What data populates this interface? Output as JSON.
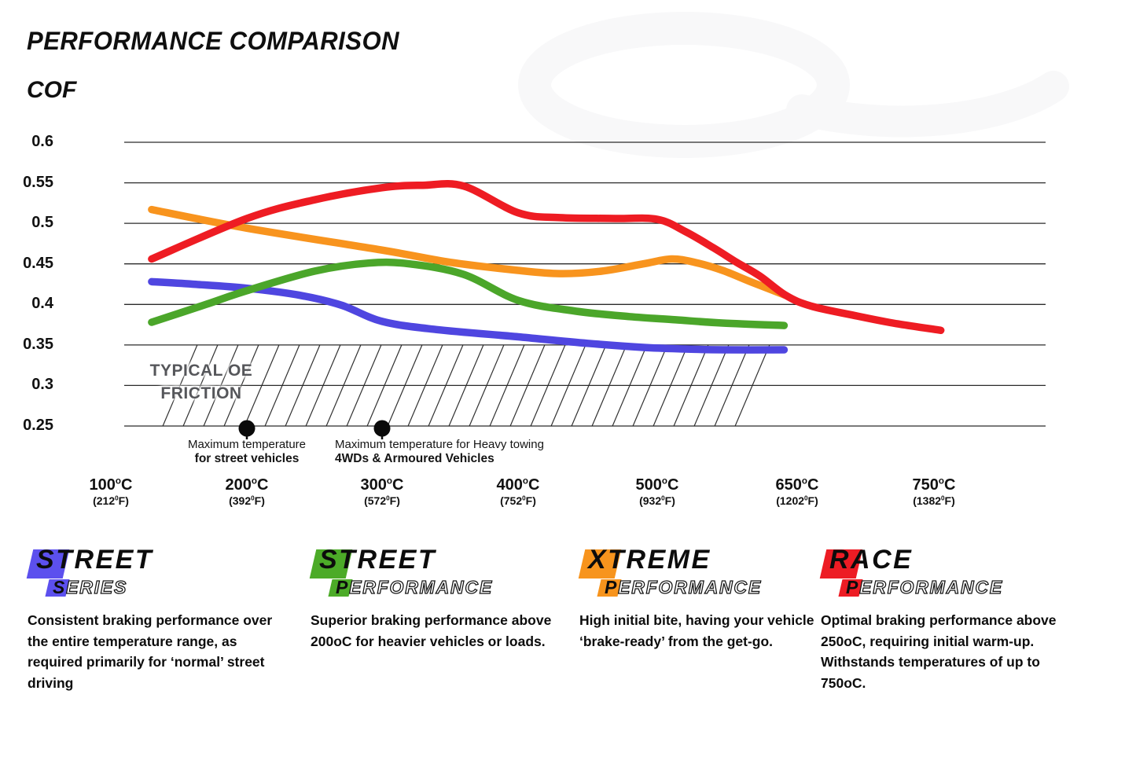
{
  "header": {
    "title": "PERFORMANCE COMPARISON",
    "axis_label": "COF"
  },
  "chart_data": {
    "type": "line",
    "title": "PERFORMANCE COMPARISON",
    "ylabel": "COF",
    "ylim": [
      0.25,
      0.6
    ],
    "grid": "horizontal",
    "legend_position": "none",
    "yticks": [
      0.6,
      0.55,
      0.5,
      0.45,
      0.4,
      0.35,
      0.3,
      0.25
    ],
    "ytick_labels": [
      "0.6",
      "0.55",
      "0.5",
      "0.45",
      "0.4",
      "0.35",
      "0.3",
      "0.25"
    ],
    "x_ticks": [
      {
        "celsius": "100",
        "fahrenheit": "212"
      },
      {
        "celsius": "200",
        "fahrenheit": "392"
      },
      {
        "celsius": "300",
        "fahrenheit": "572"
      },
      {
        "celsius": "400",
        "fahrenheit": "752"
      },
      {
        "celsius": "500",
        "fahrenheit": "932"
      },
      {
        "celsius": "650",
        "fahrenheit": "1202"
      },
      {
        "celsius": "750",
        "fahrenheit": "1382"
      }
    ],
    "series": [
      {
        "name": "Street Series",
        "color": "#4f46e0",
        "points": [
          [
            130,
            0.428
          ],
          [
            160,
            0.425
          ],
          [
            200,
            0.42
          ],
          [
            240,
            0.411
          ],
          [
            270,
            0.399
          ],
          [
            300,
            0.379
          ],
          [
            340,
            0.369
          ],
          [
            400,
            0.36
          ],
          [
            450,
            0.352
          ],
          [
            490,
            0.347
          ],
          [
            530,
            0.345
          ],
          [
            570,
            0.344
          ],
          [
            636,
            0.344
          ]
        ]
      },
      {
        "name": "Street Performance",
        "color": "#4ba62a",
        "points": [
          [
            130,
            0.378
          ],
          [
            170,
            0.4
          ],
          [
            200,
            0.417
          ],
          [
            250,
            0.441
          ],
          [
            290,
            0.451
          ],
          [
            320,
            0.45
          ],
          [
            360,
            0.437
          ],
          [
            400,
            0.405
          ],
          [
            440,
            0.392
          ],
          [
            480,
            0.385
          ],
          [
            520,
            0.381
          ],
          [
            570,
            0.377
          ],
          [
            636,
            0.374
          ]
        ]
      },
      {
        "name": "Xtreme Performance",
        "color": "#f8941e",
        "points": [
          [
            130,
            0.517
          ],
          [
            200,
            0.494
          ],
          [
            300,
            0.467
          ],
          [
            350,
            0.452
          ],
          [
            400,
            0.442
          ],
          [
            430,
            0.438
          ],
          [
            460,
            0.441
          ],
          [
            490,
            0.45
          ],
          [
            515,
            0.456
          ],
          [
            540,
            0.452
          ],
          [
            570,
            0.442
          ],
          [
            600,
            0.428
          ],
          [
            638,
            0.411
          ]
        ]
      },
      {
        "name": "Race Performance",
        "color": "#ee1c23",
        "points": [
          [
            130,
            0.456
          ],
          [
            200,
            0.506
          ],
          [
            250,
            0.529
          ],
          [
            300,
            0.544
          ],
          [
            330,
            0.547
          ],
          [
            360,
            0.546
          ],
          [
            400,
            0.513
          ],
          [
            430,
            0.507
          ],
          [
            470,
            0.506
          ],
          [
            500,
            0.505
          ],
          [
            530,
            0.49
          ],
          [
            560,
            0.47
          ],
          [
            585,
            0.452
          ],
          [
            610,
            0.435
          ],
          [
            638,
            0.411
          ],
          [
            660,
            0.398
          ],
          [
            690,
            0.387
          ],
          [
            720,
            0.377
          ],
          [
            755,
            0.368
          ]
        ]
      }
    ],
    "oe_band": {
      "label_line1": "TYPICAL OE",
      "label_line2": "FRICTION",
      "cof_range": [
        0.25,
        0.35
      ],
      "temp_range": [
        130,
        640
      ]
    },
    "annotations": [
      {
        "temp": 200,
        "line1": "Maximum temperature",
        "line2": "for street vehicles",
        "align": "center"
      },
      {
        "temp": 300,
        "line1": "Maximum temperature for Heavy towing",
        "line2": "4WDs & Armoured Vehicles",
        "align": "left"
      }
    ]
  },
  "products": [
    {
      "word1": "STREET",
      "word2": "SERIES",
      "color": "#5c50ee",
      "description": "Consistent braking performance over the entire temperature range, as required primarily for ‘normal’ street driving"
    },
    {
      "word1": "STREET",
      "word2": "PERFORMANCE",
      "color": "#4cab28",
      "description": "Superior braking performance above 200oC for heavier vehicles or loads."
    },
    {
      "word1": "XTREME",
      "word2": "PERFORMANCE",
      "color": "#f7941d",
      "description": "High initial bite, having your vehicle ‘brake-ready’ from the get-go."
    },
    {
      "word1": "RACE",
      "word2": "PERFORMANCE",
      "color": "#ed1c24",
      "description": "Optimal braking performance above 250oC, requiring initial warm-up. Withstands temperatures of up to 750oC."
    }
  ]
}
